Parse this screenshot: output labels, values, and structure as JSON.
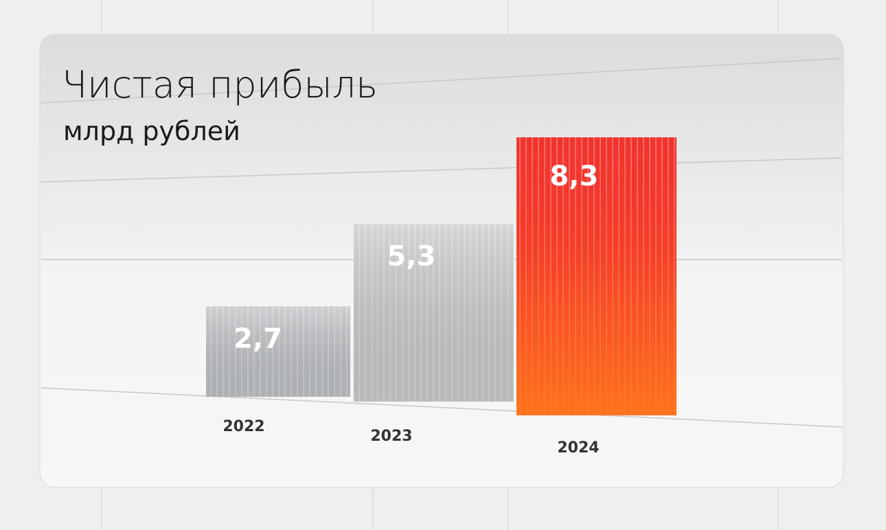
{
  "chart_data": {
    "type": "bar",
    "title": "Чистая прибыль",
    "subtitle": "млрд рублей",
    "categories": [
      "2022",
      "2023",
      "2024"
    ],
    "values": [
      2.7,
      5.3,
      8.3
    ],
    "value_labels": [
      "2,7",
      "5,3",
      "8,3"
    ],
    "colors": [
      "#b9bcbf",
      "#c4c6c8",
      "#f2261e"
    ]
  }
}
